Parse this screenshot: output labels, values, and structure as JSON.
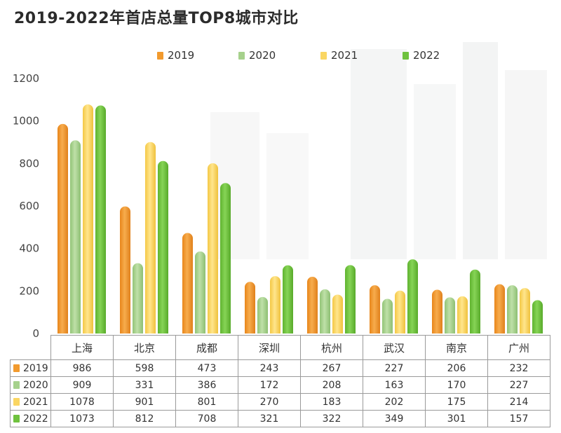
{
  "title": "2019-2022年首店总量TOP8城市对比",
  "chart_data": {
    "type": "bar",
    "title": "2019-2022年首店总量TOP8城市对比",
    "categories": [
      "上海",
      "北京",
      "成都",
      "深圳",
      "杭州",
      "武汉",
      "南京",
      "广州"
    ],
    "series": [
      {
        "name": "2019",
        "color": "#f29a2e",
        "values": [
          986,
          598,
          473,
          243,
          267,
          227,
          206,
          232
        ]
      },
      {
        "name": "2020",
        "color": "#a6d18c",
        "values": [
          909,
          331,
          386,
          172,
          208,
          163,
          170,
          227
        ]
      },
      {
        "name": "2021",
        "color": "#fad663",
        "values": [
          1078,
          901,
          801,
          270,
          183,
          202,
          175,
          214
        ]
      },
      {
        "name": "2022",
        "color": "#6fc23e",
        "values": [
          1073,
          812,
          708,
          321,
          322,
          349,
          301,
          157
        ]
      }
    ],
    "ylim": [
      0,
      1200
    ],
    "yticks": [
      0,
      200,
      400,
      600,
      800,
      1000,
      1200
    ],
    "ytick_labels": [
      "0",
      "200",
      "400",
      "600",
      "800",
      "1000",
      "1200"
    ],
    "grid": false,
    "legend_position": "top-center",
    "xlabel": "",
    "ylabel": ""
  }
}
